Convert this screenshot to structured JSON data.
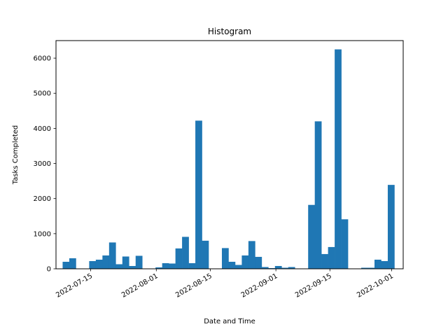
{
  "chart_data": {
    "type": "bar",
    "title": "Histogram",
    "xlabel": "Date and Time",
    "ylabel": "Tasks Completed",
    "bar_color": "#1f77b4",
    "grid": false,
    "legend": "none",
    "xlim": [
      "2022-07-06",
      "2022-10-04"
    ],
    "ylim": [
      0,
      6500
    ],
    "x_ticks": [
      "2022-07-15",
      "2022-08-01",
      "2022-08-15",
      "2022-09-01",
      "2022-09-15",
      "2022-10-01"
    ],
    "y_ticks": [
      0,
      1000,
      2000,
      3000,
      4000,
      5000,
      6000
    ],
    "bin_start": "2022-07-06",
    "bin_width_days": 1.72,
    "values": [
      0,
      200,
      300,
      0,
      0,
      220,
      260,
      380,
      750,
      130,
      350,
      80,
      370,
      0,
      0,
      40,
      160,
      150,
      580,
      910,
      160,
      4220,
      800,
      0,
      0,
      590,
      200,
      110,
      380,
      790,
      340,
      50,
      20,
      80,
      30,
      50,
      0,
      0,
      1820,
      4200,
      420,
      620,
      6250,
      1410,
      0,
      0,
      30,
      30,
      260,
      220,
      2390,
      0
    ]
  }
}
